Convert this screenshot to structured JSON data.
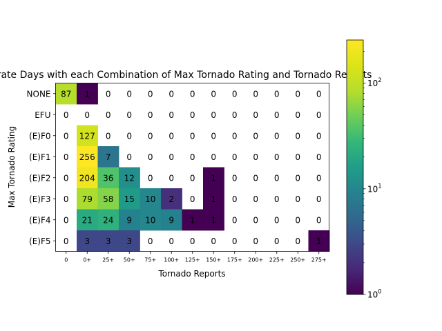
{
  "chart_data": {
    "type": "heatmap",
    "title": "Moderate Days with each Combination of Max Tornado Rating and Tornado Reports",
    "xlabel": "Tornado Reports",
    "ylabel": "Max Tornado Rating",
    "x_categories": [
      "0",
      "0+",
      "25+",
      "50+",
      "75+",
      "100+",
      "125+",
      "150+",
      "175+",
      "200+",
      "225+",
      "250+",
      "275+"
    ],
    "y_categories": [
      "NONE",
      "EFU",
      "(E)F0",
      "(E)F1",
      "(E)F2",
      "(E)F3",
      "(E)F4",
      "(E)F5"
    ],
    "values": [
      [
        87,
        1,
        0,
        0,
        0,
        0,
        0,
        0,
        0,
        0,
        0,
        0,
        0
      ],
      [
        0,
        0,
        0,
        0,
        0,
        0,
        0,
        0,
        0,
        0,
        0,
        0,
        0
      ],
      [
        0,
        127,
        0,
        0,
        0,
        0,
        0,
        0,
        0,
        0,
        0,
        0,
        0
      ],
      [
        0,
        256,
        7,
        0,
        0,
        0,
        0,
        0,
        0,
        0,
        0,
        0,
        0
      ],
      [
        0,
        204,
        36,
        12,
        0,
        0,
        0,
        1,
        0,
        0,
        0,
        0,
        0
      ],
      [
        0,
        79,
        58,
        15,
        10,
        2,
        0,
        1,
        0,
        0,
        0,
        0,
        0
      ],
      [
        0,
        21,
        24,
        9,
        10,
        9,
        1,
        1,
        0,
        0,
        0,
        0,
        0
      ],
      [
        0,
        3,
        3,
        3,
        0,
        0,
        0,
        0,
        0,
        0,
        0,
        0,
        1
      ]
    ],
    "color_scale": "log",
    "colormap": "viridis",
    "zero_color": "#ffffff",
    "colorbar": {
      "range": [
        1,
        256
      ],
      "tick_labels": [
        "10^0",
        "10^1",
        "10^2"
      ],
      "tick_values": [
        1,
        10,
        100
      ]
    }
  }
}
